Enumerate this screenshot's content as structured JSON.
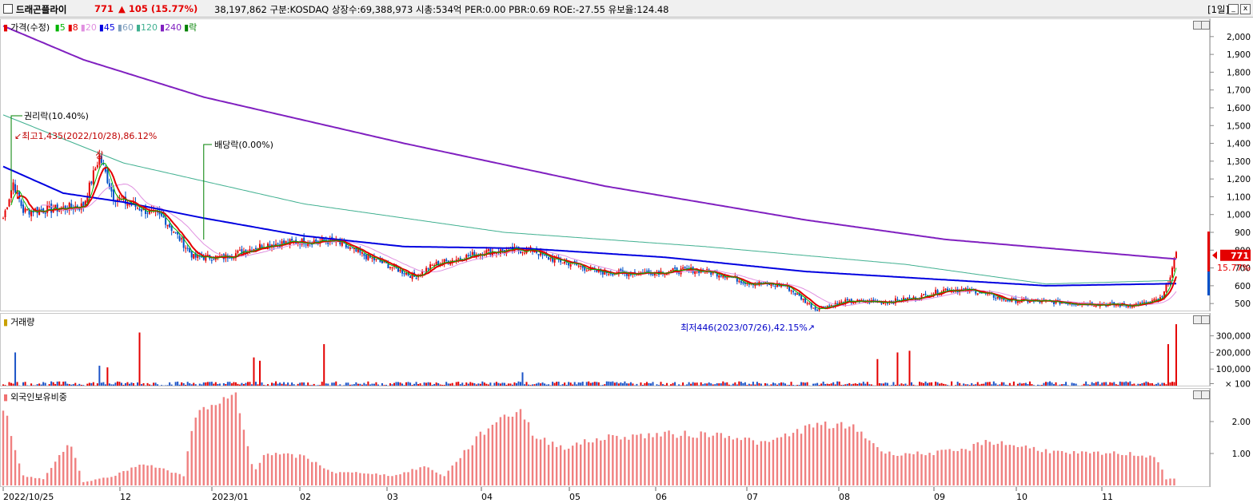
{
  "header": {
    "name": "드래곤플라이",
    "price": "771",
    "change": "▲ 105 (15.77%)",
    "info": "38,197,862  구분:KOSDAQ 상장수:69,388,973 시총:534억  PER:0.00  PBR:0.69  ROE:-27.55  유보율:124.48",
    "period": "[1일]",
    "min_btn": "_",
    "close_btn": "x"
  },
  "price_panel": {
    "legend_label": "가격(수정)",
    "ma_legend": [
      {
        "label": "5",
        "color": "#00b400"
      },
      {
        "label": "8",
        "color": "#e40000"
      },
      {
        "label": "20",
        "color": "#e090e0"
      },
      {
        "label": "45",
        "color": "#0000e0"
      },
      {
        "label": "60",
        "color": "#80a0c0"
      },
      {
        "label": "120",
        "color": "#40b090"
      },
      {
        "label": "240",
        "color": "#8020c0"
      },
      {
        "label": "락",
        "color": "#008000"
      }
    ],
    "annotations": {
      "rights": "권리락(10.40%)",
      "high": "최고1,435(2022/10/28),86.12%",
      "limit_up": "상",
      "dividend": "배당락(0.00%)",
      "low": "최저446(2023/07/26),42.15%"
    },
    "current_tag": "771",
    "current_pct": "15.77%"
  },
  "volume_panel": {
    "legend_label": "거래량"
  },
  "foreign_panel": {
    "legend_label": "외국인보유비중"
  },
  "x_labels": [
    "2022/10/25",
    "12",
    "2023/01",
    "02",
    "03",
    "04",
    "05",
    "06",
    "07",
    "08",
    "09",
    "10",
    "11"
  ],
  "chart_data": [
    {
      "type": "candlestick",
      "name": "price",
      "ylim": [
        420,
        2080
      ],
      "y_ticks": [
        "2,000",
        "1,900",
        "1,800",
        "1,700",
        "1,600",
        "1,500",
        "1,400",
        "1,300",
        "1,200",
        "1,100",
        "1,000",
        "900",
        "800",
        "700",
        "600",
        "500"
      ],
      "close_key_points": [
        [
          0,
          980
        ],
        [
          5,
          1180
        ],
        [
          10,
          1020
        ],
        [
          25,
          1030
        ],
        [
          40,
          1050
        ],
        [
          48,
          1330
        ],
        [
          55,
          1100
        ],
        [
          65,
          1050
        ],
        [
          80,
          980
        ],
        [
          95,
          760
        ],
        [
          110,
          760
        ],
        [
          130,
          830
        ],
        [
          150,
          850
        ],
        [
          165,
          850
        ],
        [
          180,
          770
        ],
        [
          195,
          700
        ],
        [
          205,
          650
        ],
        [
          215,
          720
        ],
        [
          240,
          790
        ],
        [
          255,
          800
        ],
        [
          265,
          800
        ],
        [
          270,
          760
        ],
        [
          285,
          720
        ],
        [
          295,
          680
        ],
        [
          310,
          670
        ],
        [
          330,
          680
        ],
        [
          345,
          690
        ],
        [
          360,
          660
        ],
        [
          370,
          620
        ],
        [
          390,
          600
        ],
        [
          405,
          470
        ],
        [
          420,
          510
        ],
        [
          440,
          510
        ],
        [
          455,
          530
        ],
        [
          470,
          580
        ],
        [
          485,
          570
        ],
        [
          500,
          520
        ],
        [
          520,
          510
        ],
        [
          540,
          500
        ],
        [
          560,
          490
        ],
        [
          570,
          500
        ],
        [
          578,
          530
        ],
        [
          582,
          660
        ],
        [
          585,
          771
        ]
      ],
      "ma240_key_points": [
        [
          0,
          2060
        ],
        [
          40,
          1870
        ],
        [
          100,
          1660
        ],
        [
          200,
          1400
        ],
        [
          300,
          1160
        ],
        [
          400,
          970
        ],
        [
          470,
          860
        ],
        [
          585,
          750
        ]
      ],
      "ma120_key_points": [
        [
          0,
          1560
        ],
        [
          60,
          1290
        ],
        [
          150,
          1060
        ],
        [
          250,
          900
        ],
        [
          350,
          820
        ],
        [
          450,
          720
        ],
        [
          520,
          610
        ],
        [
          585,
          630
        ]
      ],
      "ma45_key_points": [
        [
          0,
          1270
        ],
        [
          30,
          1120
        ],
        [
          60,
          1070
        ],
        [
          100,
          980
        ],
        [
          150,
          880
        ],
        [
          200,
          820
        ],
        [
          260,
          810
        ],
        [
          330,
          760
        ],
        [
          400,
          680
        ],
        [
          460,
          640
        ],
        [
          520,
          600
        ],
        [
          585,
          612
        ]
      ],
      "current_price": 771
    },
    {
      "type": "bar",
      "name": "volume",
      "y_ticks": [
        "300,000",
        "200,000",
        "100,000",
        "× 100"
      ],
      "ylim": [
        0,
        380000
      ],
      "spikes": [
        [
          6,
          200000
        ],
        [
          48,
          120000
        ],
        [
          52,
          110000
        ],
        [
          68,
          320000
        ],
        [
          125,
          170000
        ],
        [
          128,
          150000
        ],
        [
          160,
          250000
        ],
        [
          259,
          80000
        ],
        [
          436,
          160000
        ],
        [
          446,
          200000
        ],
        [
          452,
          210000
        ],
        [
          581,
          250000
        ],
        [
          585,
          370000
        ]
      ],
      "base_level": 20000
    },
    {
      "type": "bar",
      "name": "foreign_ownership",
      "y_ticks": [
        "2.00",
        "1.00"
      ],
      "ylim": [
        0,
        2.75
      ],
      "key_points": [
        [
          0,
          2.5
        ],
        [
          10,
          0.3
        ],
        [
          20,
          0.2
        ],
        [
          33,
          1.4
        ],
        [
          40,
          0.1
        ],
        [
          55,
          0.3
        ],
        [
          70,
          0.7
        ],
        [
          90,
          0.3
        ],
        [
          95,
          2.2
        ],
        [
          110,
          2.6
        ],
        [
          116,
          2.8
        ],
        [
          125,
          0.4
        ],
        [
          130,
          1.0
        ],
        [
          150,
          0.9
        ],
        [
          165,
          0.4
        ],
        [
          180,
          0.4
        ],
        [
          195,
          0.3
        ],
        [
          210,
          0.6
        ],
        [
          220,
          0.3
        ],
        [
          232,
          1.2
        ],
        [
          245,
          2.0
        ],
        [
          258,
          2.4
        ],
        [
          265,
          1.5
        ],
        [
          280,
          1.2
        ],
        [
          300,
          1.5
        ],
        [
          330,
          1.6
        ],
        [
          360,
          1.6
        ],
        [
          380,
          1.3
        ],
        [
          400,
          1.8
        ],
        [
          410,
          1.9
        ],
        [
          425,
          1.8
        ],
        [
          440,
          1.0
        ],
        [
          460,
          1.0
        ],
        [
          480,
          1.1
        ],
        [
          490,
          1.4
        ],
        [
          510,
          1.2
        ],
        [
          530,
          1.0
        ],
        [
          560,
          1.0
        ],
        [
          575,
          0.9
        ],
        [
          580,
          0.2
        ],
        [
          585,
          0.2
        ]
      ]
    }
  ]
}
